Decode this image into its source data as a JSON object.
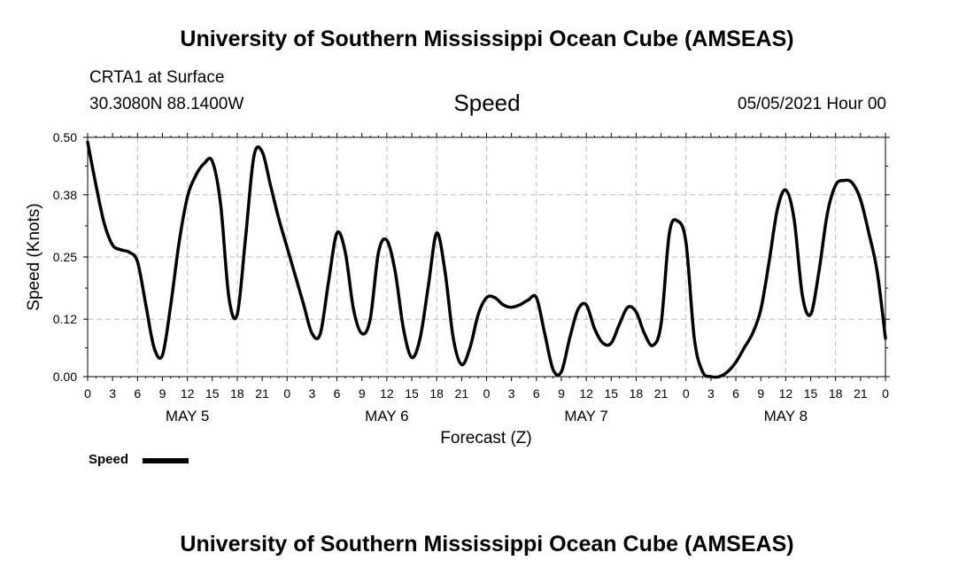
{
  "header": {
    "title": "University of Southern Mississippi Ocean Cube (AMSEAS)",
    "station": "CRTA1 at Surface",
    "coords": "30.3080N  88.1400W",
    "variable": "Speed",
    "datetime": "05/05/2021 Hour 00"
  },
  "footer": {
    "title": "University of Southern Mississippi Ocean Cube (AMSEAS)"
  },
  "legend": {
    "label": "Speed"
  },
  "colors": {
    "line": "#000000",
    "grid": "#bbbbbb",
    "background": "#ffffff"
  },
  "chart_data": {
    "type": "line",
    "title": "Speed",
    "xlabel": "Forecast (Z)",
    "ylabel": "Speed (Knots)",
    "xlim": [
      0,
      96
    ],
    "ylim": [
      0,
      0.5
    ],
    "y_ticks": [
      0.0,
      0.12,
      0.25,
      0.38,
      0.5
    ],
    "y_tick_labels": [
      "0.00",
      "0.12",
      "0.25",
      "0.38",
      "0.50"
    ],
    "x_ticks": [
      0,
      3,
      6,
      9,
      12,
      15,
      18,
      21,
      24,
      27,
      30,
      33,
      36,
      39,
      42,
      45,
      48,
      51,
      54,
      57,
      60,
      63,
      66,
      69,
      72,
      75,
      78,
      81,
      84,
      87,
      90,
      93,
      96
    ],
    "x_tick_labels": [
      "0",
      "3",
      "6",
      "9",
      "12",
      "15",
      "18",
      "21",
      "0",
      "3",
      "6",
      "9",
      "12",
      "15",
      "18",
      "21",
      "0",
      "3",
      "6",
      "9",
      "12",
      "15",
      "18",
      "21",
      "0",
      "3",
      "6",
      "9",
      "12",
      "15",
      "18",
      "21",
      "0"
    ],
    "day_labels": [
      {
        "label": "MAY 5",
        "hour": 12
      },
      {
        "label": "MAY 6",
        "hour": 36
      },
      {
        "label": "MAY 7",
        "hour": 60
      },
      {
        "label": "MAY 8",
        "hour": 84
      }
    ],
    "grid": true,
    "legend_position": "bottom-left",
    "series": [
      {
        "name": "Speed",
        "x": [
          0,
          1,
          2,
          3,
          4,
          5,
          6,
          7,
          8,
          9,
          10,
          11,
          12,
          13,
          14,
          15,
          16,
          17,
          18,
          19,
          20,
          21,
          22,
          23,
          24,
          25,
          26,
          27,
          28,
          29,
          30,
          31,
          32,
          33,
          34,
          35,
          36,
          37,
          38,
          39,
          40,
          41,
          42,
          43,
          44,
          45,
          46,
          47,
          48,
          49,
          50,
          51,
          52,
          53,
          54,
          55,
          56,
          57,
          58,
          59,
          60,
          61,
          62,
          63,
          64,
          65,
          66,
          67,
          68,
          69,
          70,
          71,
          72,
          73,
          74,
          75,
          76,
          77,
          78,
          79,
          80,
          81,
          82,
          83,
          84,
          85,
          86,
          87,
          88,
          89,
          90,
          91,
          92,
          93,
          94,
          95,
          96
        ],
        "values": [
          0.49,
          0.4,
          0.32,
          0.275,
          0.265,
          0.26,
          0.24,
          0.15,
          0.06,
          0.045,
          0.15,
          0.28,
          0.375,
          0.42,
          0.445,
          0.45,
          0.36,
          0.165,
          0.13,
          0.29,
          0.46,
          0.47,
          0.4,
          0.33,
          0.27,
          0.21,
          0.15,
          0.09,
          0.09,
          0.2,
          0.3,
          0.26,
          0.14,
          0.09,
          0.12,
          0.26,
          0.285,
          0.22,
          0.1,
          0.04,
          0.08,
          0.19,
          0.3,
          0.22,
          0.08,
          0.025,
          0.06,
          0.13,
          0.165,
          0.165,
          0.15,
          0.145,
          0.15,
          0.16,
          0.165,
          0.09,
          0.015,
          0.01,
          0.08,
          0.14,
          0.15,
          0.1,
          0.07,
          0.07,
          0.11,
          0.145,
          0.135,
          0.09,
          0.065,
          0.11,
          0.3,
          0.325,
          0.28,
          0.08,
          0.01,
          0.0,
          0.0,
          0.01,
          0.03,
          0.06,
          0.09,
          0.14,
          0.24,
          0.35,
          0.39,
          0.33,
          0.17,
          0.13,
          0.22,
          0.34,
          0.4,
          0.41,
          0.405,
          0.37,
          0.3,
          0.22,
          0.08
        ]
      }
    ]
  }
}
